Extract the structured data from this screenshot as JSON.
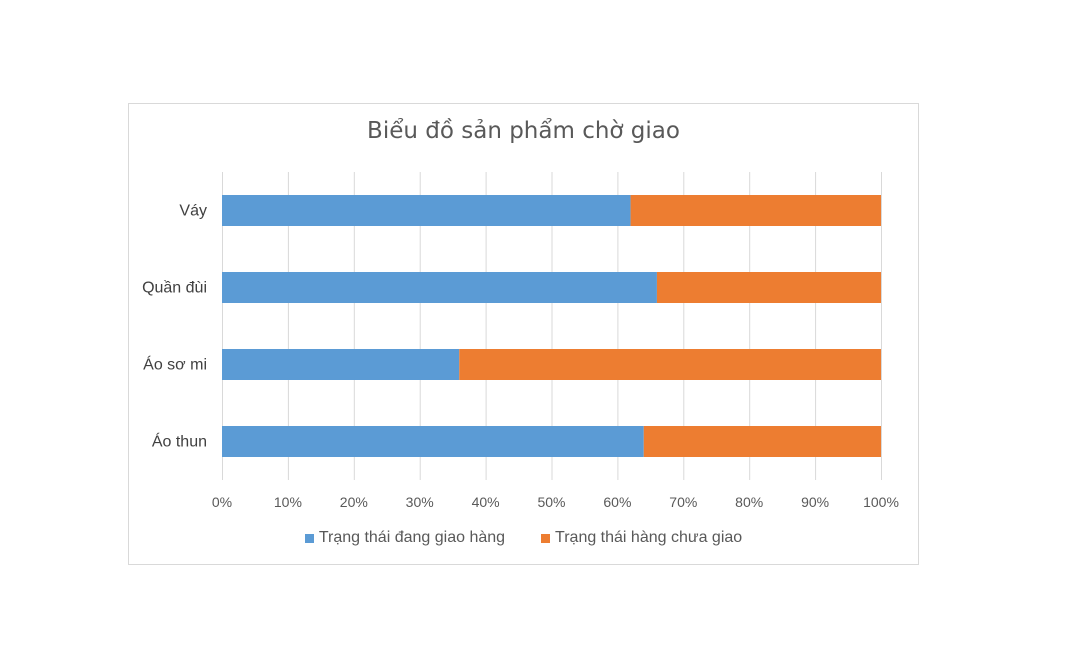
{
  "chart_data": {
    "type": "bar",
    "orientation": "horizontal",
    "stacked": "percent",
    "title": "Biểu đồ sản phẩm chờ giao",
    "categories": [
      "Váy",
      "Quần đùi",
      "Áo sơ mi",
      "Áo thun"
    ],
    "series": [
      {
        "name": "Trạng thái đang giao hàng",
        "color": "#5b9bd5",
        "values": [
          62,
          66,
          36,
          64
        ]
      },
      {
        "name": "Trạng thái hàng chưa giao",
        "color": "#ed7d31",
        "values": [
          38,
          34,
          64,
          36
        ]
      }
    ],
    "x_ticks": [
      "0%",
      "10%",
      "20%",
      "30%",
      "40%",
      "50%",
      "60%",
      "70%",
      "80%",
      "90%",
      "100%"
    ],
    "xlim": [
      0,
      100
    ],
    "grid": true,
    "legend_position": "bottom"
  }
}
